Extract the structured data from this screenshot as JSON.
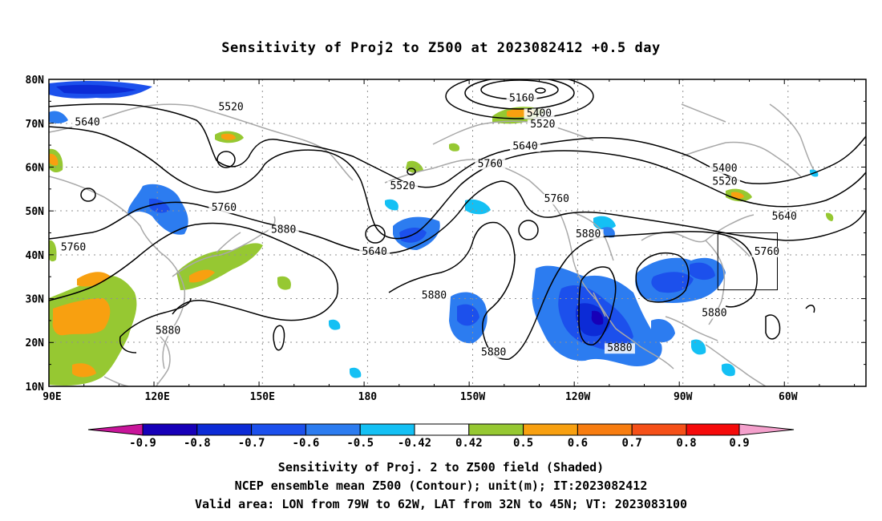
{
  "title": "Sensitivity of Proj2 to Z500 at 2023082412 +0.5 day",
  "map": {
    "lat_labels": [
      "80N",
      "70N",
      "60N",
      "50N",
      "40N",
      "30N",
      "20N",
      "10N"
    ],
    "lon_labels": [
      "90E",
      "120E",
      "150E",
      "180",
      "150W",
      "120W",
      "90W",
      "60W"
    ],
    "contour_labels": [
      {
        "text": "5520",
        "lon": 142,
        "lat": 73
      },
      {
        "text": "5640",
        "lon": 101,
        "lat": 69.5
      },
      {
        "text": "5160",
        "lon": -135,
        "lat": 75
      },
      {
        "text": "5400",
        "lon": -130,
        "lat": 71.5
      },
      {
        "text": "5520",
        "lon": -129,
        "lat": 69
      },
      {
        "text": "5640",
        "lon": -134,
        "lat": 64
      },
      {
        "text": "5760",
        "lon": -144,
        "lat": 60
      },
      {
        "text": "5760",
        "lon": -125,
        "lat": 52
      },
      {
        "text": "5520",
        "lon": -169,
        "lat": 55
      },
      {
        "text": "5400",
        "lon": -77,
        "lat": 59
      },
      {
        "text": "5520",
        "lon": -77,
        "lat": 56
      },
      {
        "text": "5640",
        "lon": -60,
        "lat": 48
      },
      {
        "text": "5760",
        "lon": -65,
        "lat": 40
      },
      {
        "text": "5760",
        "lon": 140,
        "lat": 50
      },
      {
        "text": "5880",
        "lon": 157,
        "lat": 45
      },
      {
        "text": "5640",
        "lon": -177,
        "lat": 40
      },
      {
        "text": "5760",
        "lon": 97,
        "lat": 41
      },
      {
        "text": "5880",
        "lon": -160,
        "lat": 30
      },
      {
        "text": "5880",
        "lon": -143,
        "lat": 17
      },
      {
        "text": "5880",
        "lon": -107,
        "lat": 18
      },
      {
        "text": "5880",
        "lon": -116,
        "lat": 44
      },
      {
        "text": "5880",
        "lon": -80,
        "lat": 26
      },
      {
        "text": "5880",
        "lon": 124,
        "lat": 22
      }
    ],
    "valid_box": {
      "lon_min": -79,
      "lon_max": -62,
      "lat_min": 32,
      "lat_max": 45
    }
  },
  "colorbar": {
    "labels": [
      "-0.9",
      "-0.8",
      "-0.7",
      "-0.6",
      "-0.5",
      "-0.42",
      "0.42",
      "0.5",
      "0.6",
      "0.7",
      "0.8",
      "0.9"
    ],
    "colors": [
      "#c8159a",
      "#1700b8",
      "#0c2bd6",
      "#1c50ec",
      "#2c7cf0",
      "#14c0f4",
      "#ffffff",
      "#96c832",
      "#f8a010",
      "#f87d10",
      "#f55018",
      "#f50a0a",
      "#f4a0cc"
    ]
  },
  "caption": [
    "Sensitivity of Proj. 2 to Z500 field (Shaded)",
    "NCEP ensemble mean Z500 (Contour); unit(m); IT:2023082412",
    "Valid area: LON from 79W to 62W, LAT from 32N to 45N; VT: 2023083100"
  ]
}
